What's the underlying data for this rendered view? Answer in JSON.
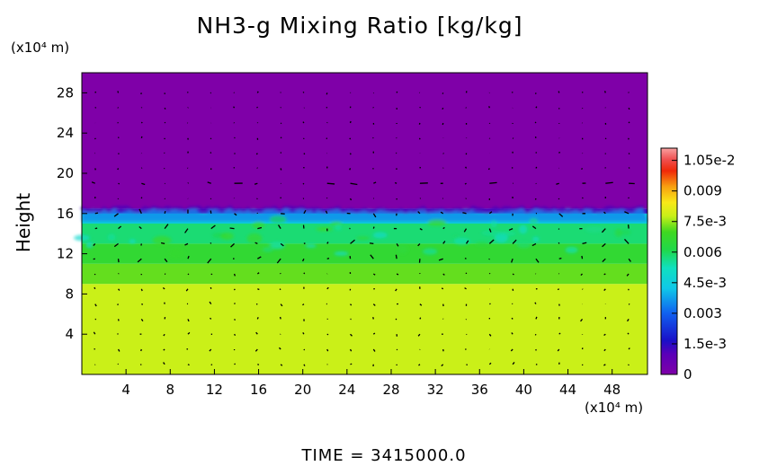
{
  "chart_data": {
    "type": "heatmap",
    "title": "NH3-g Mixing Ratio [kg/kg]",
    "ylabel": "Height",
    "y_unit": "(x10⁴ m)",
    "x_unit": "(x10⁴ m)",
    "footer": "TIME = 3415000.0",
    "xlim": [
      0,
      51.2
    ],
    "ylim": [
      0,
      30
    ],
    "x_ticks": [
      "4",
      "8",
      "12",
      "16",
      "20",
      "24",
      "28",
      "32",
      "36",
      "40",
      "44",
      "48"
    ],
    "y_ticks": [
      "4",
      "8",
      "12",
      "16",
      "20",
      "24",
      "28"
    ],
    "colorbar": {
      "min": 0,
      "max": 0.0111,
      "tick_labels": [
        "1.05e-2",
        "0.009",
        "7.5e-3",
        "0.006",
        "4.5e-3",
        "0.003",
        "1.5e-3",
        "0"
      ],
      "tick_values": [
        0.0105,
        0.009,
        0.0075,
        0.006,
        0.0045,
        0.003,
        0.0015,
        0
      ]
    },
    "layers": [
      {
        "y_from": 0,
        "y_to": 9,
        "value": 0.0078
      },
      {
        "y_from": 9,
        "y_to": 11,
        "value": 0.0072
      },
      {
        "y_from": 11,
        "y_to": 13,
        "value": 0.0066
      },
      {
        "y_from": 13,
        "y_to": 15,
        "value": 0.0058
      },
      {
        "y_from": 15,
        "y_to": 16,
        "value": 0.0046
      },
      {
        "y_from": 16,
        "y_to": 16.5,
        "value": 0.0012
      },
      {
        "y_from": 16.5,
        "y_to": 30,
        "value": 0.0
      }
    ],
    "colors": {
      "background_top": "#7f00a8",
      "lower": "#d8f41c",
      "green": "#2ed636",
      "cyan": "#16e6d6",
      "blue": "#1030d8"
    },
    "wind_vectors": "shown"
  }
}
